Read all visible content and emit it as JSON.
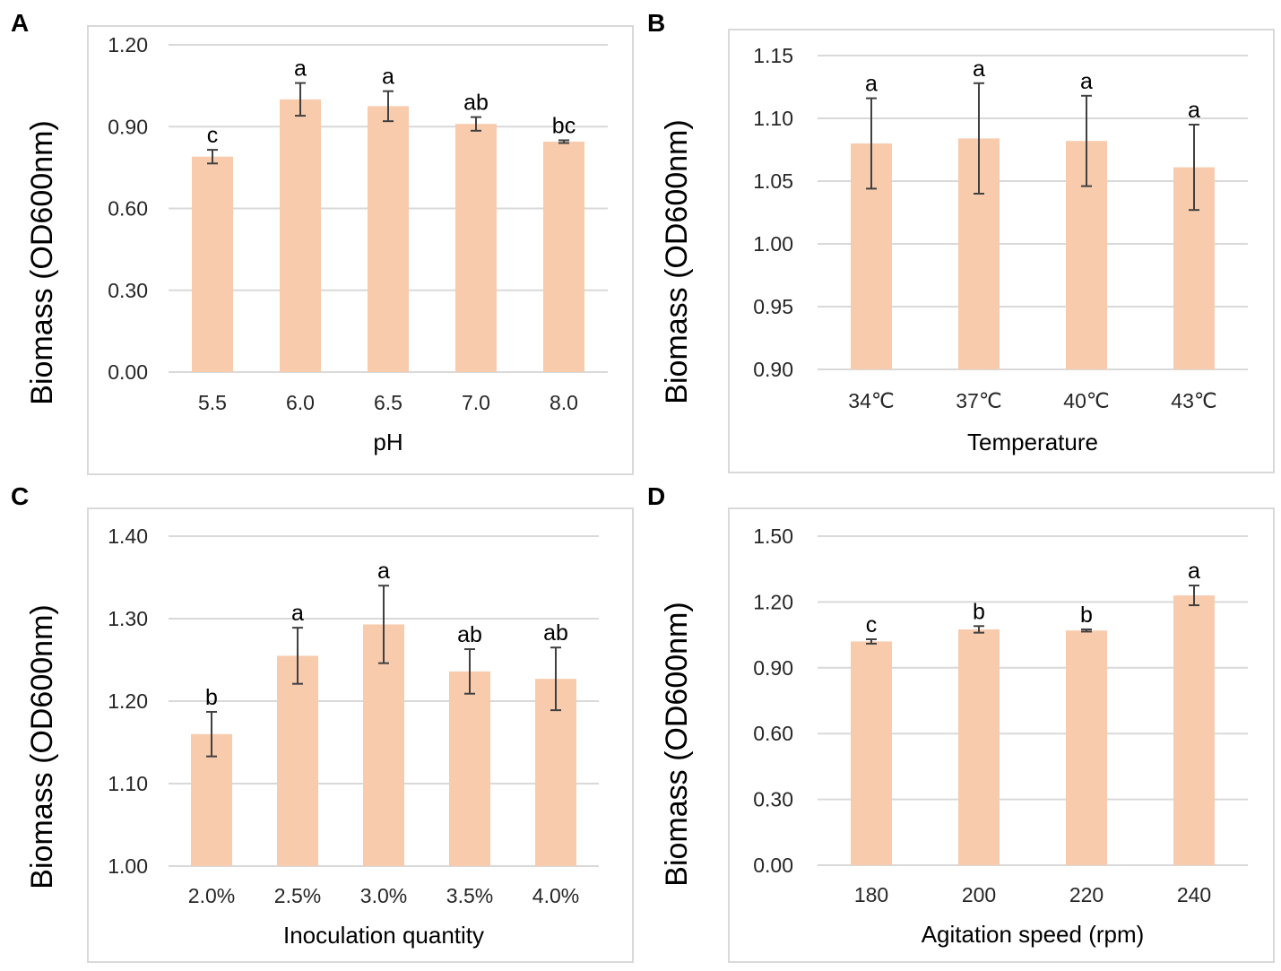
{
  "colors": {
    "bar": "#f8cbad",
    "grid": "#d9d9d9",
    "error": "#404040",
    "frame": "#d9d9d9"
  },
  "chart_data": [
    {
      "panel": "A",
      "type": "bar",
      "categories": [
        "5.5",
        "6.0",
        "6.5",
        "7.0",
        "8.0"
      ],
      "values": [
        0.79,
        1.0,
        0.975,
        0.91,
        0.845
      ],
      "errors": [
        0.025,
        0.06,
        0.055,
        0.025,
        0.005
      ],
      "labels": [
        "c",
        "a",
        "a",
        "ab",
        "bc"
      ],
      "yticks": [
        "0.00",
        "0.30",
        "0.60",
        "0.90",
        "1.20"
      ],
      "ylim": [
        0,
        1.2
      ],
      "xlabel": "pH",
      "ylabel": "Biomass (OD600nm)",
      "grid": true
    },
    {
      "panel": "B",
      "type": "bar",
      "categories": [
        "34℃",
        "37℃",
        "40℃",
        "43℃"
      ],
      "values": [
        1.08,
        1.084,
        1.082,
        1.061
      ],
      "errors": [
        0.036,
        0.044,
        0.036,
        0.034
      ],
      "labels": [
        "a",
        "a",
        "a",
        "a"
      ],
      "yticks": [
        "0.90",
        "0.95",
        "1.00",
        "1.05",
        "1.10",
        "1.15"
      ],
      "ylim": [
        0.9,
        1.15
      ],
      "xlabel": "Temperature",
      "ylabel": "Biomass (OD600nm)",
      "grid": true
    },
    {
      "panel": "C",
      "type": "bar",
      "categories": [
        "2.0%",
        "2.5%",
        "3.0%",
        "3.5%",
        "4.0%"
      ],
      "values": [
        1.16,
        1.255,
        1.293,
        1.236,
        1.227
      ],
      "errors": [
        0.027,
        0.034,
        0.047,
        0.027,
        0.038
      ],
      "labels": [
        "b",
        "a",
        "a",
        "ab",
        "ab"
      ],
      "yticks": [
        "1.00",
        "1.10",
        "1.20",
        "1.30",
        "1.40"
      ],
      "ylim": [
        1.0,
        1.4
      ],
      "xlabel": "Inoculation quantity",
      "ylabel": "Biomass (OD600nm)",
      "grid": true
    },
    {
      "panel": "D",
      "type": "bar",
      "categories": [
        "180",
        "200",
        "220",
        "240"
      ],
      "values": [
        1.02,
        1.075,
        1.07,
        1.23
      ],
      "errors": [
        0.01,
        0.015,
        0.005,
        0.045
      ],
      "labels": [
        "c",
        "b",
        "b",
        "a"
      ],
      "yticks": [
        "0.00",
        "0.30",
        "0.60",
        "0.90",
        "1.20",
        "1.50"
      ],
      "ylim": [
        0,
        1.5
      ],
      "xlabel": "Agitation speed (rpm)",
      "ylabel": "Biomass (OD600nm)",
      "grid": true
    }
  ]
}
